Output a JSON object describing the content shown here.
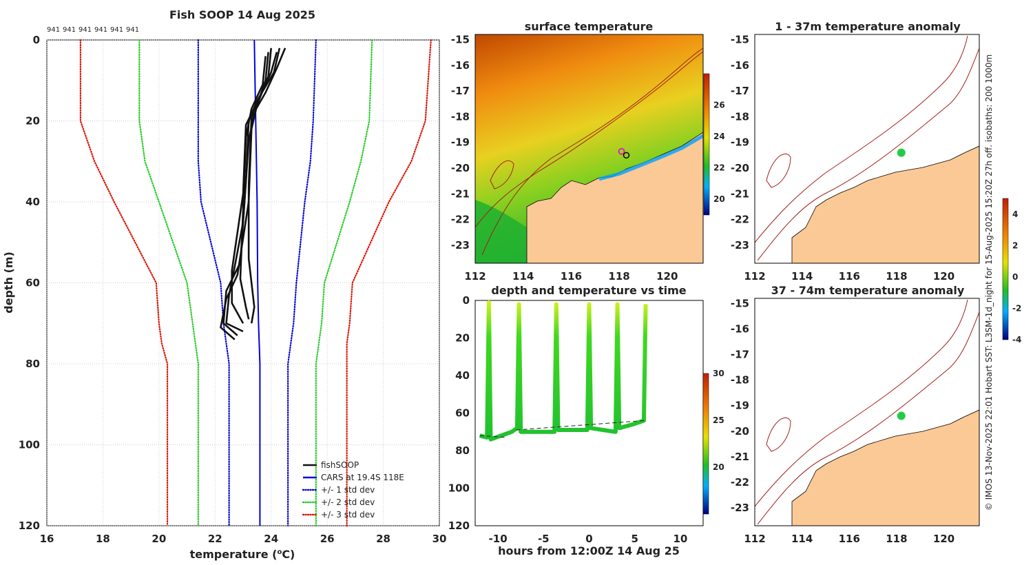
{
  "colors": {
    "obs": "#111111",
    "cars": "#0000dd",
    "std1": "#0000dd",
    "std2": "#22cc22",
    "std3": "#dd1100",
    "land": "#fbc995",
    "isobath": "#a0201a",
    "green": "#22cc44"
  },
  "chart_data": [
    {
      "type": "line",
      "title": "Fish SOOP 14 Aug 2025",
      "xlabel": "temperature (°C)",
      "xlabel_base": "temperature (",
      "xlabel_sup": "o",
      "xlabel_end": "C)",
      "ylabel": "depth (m)",
      "xlim": [
        16,
        30
      ],
      "ylim": [
        0,
        120
      ],
      "xticks": [
        16,
        18,
        20,
        22,
        24,
        26,
        28,
        30
      ],
      "yticks": [
        0,
        20,
        40,
        60,
        80,
        100,
        120
      ],
      "top_labels": [
        "941",
        "941",
        "941",
        "941",
        "941",
        "941"
      ],
      "legend": {
        "position": "bottom-right",
        "entries": [
          "fishSOOP",
          "CARS at 19.4S 118E",
          "+/- 1 std dev",
          "+/- 2 std dev",
          "+/- 3 std dev"
        ]
      },
      "series": [
        {
          "name": "CARS at 19.4S 118E",
          "depth": [
            0,
            20,
            40,
            60,
            70,
            80,
            90,
            100,
            120
          ],
          "temp": [
            23.4,
            23.45,
            23.5,
            23.52,
            23.55,
            23.6,
            23.6,
            23.6,
            23.6
          ]
        },
        {
          "name": "+/- 1 std dev low",
          "depth": [
            0,
            20,
            30,
            40,
            60,
            70,
            75,
            80,
            90,
            100,
            120
          ],
          "temp": [
            21.4,
            21.4,
            21.4,
            21.5,
            22.2,
            22.3,
            22.4,
            22.5,
            22.5,
            22.5,
            22.5
          ]
        },
        {
          "name": "+/- 1 std dev high",
          "depth": [
            0,
            20,
            30,
            40,
            60,
            70,
            75,
            80,
            90,
            100,
            120
          ],
          "temp": [
            25.6,
            25.5,
            25.4,
            25.2,
            24.9,
            24.8,
            24.7,
            24.6,
            24.6,
            24.6,
            24.6
          ]
        },
        {
          "name": "+/- 2 std dev low",
          "depth": [
            0,
            20,
            30,
            40,
            60,
            70,
            75,
            80,
            90,
            100,
            120
          ],
          "temp": [
            19.3,
            19.3,
            19.5,
            20.0,
            21.0,
            21.2,
            21.3,
            21.4,
            21.4,
            21.4,
            21.4
          ]
        },
        {
          "name": "+/- 2 std dev high",
          "depth": [
            0,
            20,
            30,
            40,
            60,
            70,
            75,
            80,
            90,
            100,
            120
          ],
          "temp": [
            27.6,
            27.5,
            27.2,
            26.8,
            25.9,
            25.8,
            25.7,
            25.6,
            25.6,
            25.6,
            25.6
          ]
        },
        {
          "name": "+/- 3 std dev low",
          "depth": [
            0,
            20,
            30,
            40,
            60,
            70,
            75,
            80,
            90,
            100,
            120
          ],
          "temp": [
            17.2,
            17.2,
            17.7,
            18.4,
            19.9,
            20.0,
            20.1,
            20.3,
            20.3,
            20.3,
            20.3
          ]
        },
        {
          "name": "+/- 3 std dev high",
          "depth": [
            0,
            20,
            30,
            40,
            60,
            70,
            75,
            80,
            90,
            100,
            120
          ],
          "temp": [
            29.7,
            29.5,
            29.0,
            28.2,
            26.9,
            26.8,
            26.7,
            26.7,
            26.7,
            26.7,
            26.7
          ]
        }
      ],
      "casts": [
        {
          "depth": [
            2,
            8,
            15,
            20,
            35,
            55,
            62,
            70,
            73
          ],
          "temp": [
            24.3,
            24.1,
            23.5,
            23.2,
            23.1,
            22.9,
            22.4,
            22.3,
            22.8
          ]
        },
        {
          "depth": [
            2,
            9,
            16,
            22,
            40,
            58,
            64,
            71,
            74
          ],
          "temp": [
            24.0,
            23.9,
            23.5,
            23.3,
            23.2,
            22.8,
            22.4,
            22.2,
            22.7
          ]
        },
        {
          "depth": [
            3,
            10,
            18,
            25,
            45,
            56,
            63,
            70,
            72
          ],
          "temp": [
            23.9,
            23.8,
            23.4,
            23.2,
            23.0,
            22.7,
            22.5,
            22.4,
            23.0
          ]
        },
        {
          "depth": [
            3,
            8,
            14,
            21,
            38,
            57,
            65,
            70
          ],
          "temp": [
            24.2,
            24.0,
            23.6,
            23.1,
            23.0,
            22.6,
            22.6,
            23.0
          ]
        },
        {
          "depth": [
            2,
            7,
            13,
            19,
            36,
            54,
            60,
            66,
            70
          ],
          "temp": [
            24.5,
            24.2,
            23.8,
            23.3,
            23.2,
            23.2,
            23.3,
            23.4,
            23.3
          ]
        },
        {
          "depth": [
            4,
            11,
            17,
            24,
            42,
            59,
            66,
            69
          ],
          "temp": [
            23.8,
            23.7,
            23.3,
            23.1,
            23.0,
            22.9,
            23.1,
            23.2
          ]
        }
      ]
    },
    {
      "type": "heatmap",
      "title": "surface temperature",
      "xlim": [
        112,
        121.5
      ],
      "ylim": [
        -23.7,
        -14.8
      ],
      "xticks": [
        112,
        114,
        116,
        118,
        120
      ],
      "yticks": [
        -15,
        -16,
        -17,
        -18,
        -19,
        -20,
        -21,
        -22,
        -23
      ],
      "colorbar": {
        "min": 19,
        "max": 28,
        "ticks": [
          20,
          22,
          24,
          26
        ]
      },
      "markers": [
        {
          "lon": 118.1,
          "lat": -19.35,
          "kind": "magenta ring"
        },
        {
          "lon": 118.3,
          "lat": -19.5,
          "kind": "black ring"
        }
      ]
    },
    {
      "type": "scatter",
      "title": "depth and temperature vs time",
      "xlabel": "hours from 12:00Z 14 Aug 25",
      "xlim": [
        -12.5,
        12.5
      ],
      "ylim": [
        0,
        120
      ],
      "xticks": [
        -10,
        -5,
        0,
        5,
        10
      ],
      "yticks": [
        0,
        20,
        40,
        60,
        80,
        100,
        120
      ],
      "colorbar": {
        "min": 15,
        "max": 30,
        "ticks": [
          20,
          25,
          30
        ]
      },
      "profiles": [
        {
          "hours": [
            -12,
            -11.2,
            -11.0,
            -10.8,
            -8.5,
            -7.9,
            -7.7,
            -7.5,
            -5.0,
            -3.8,
            -3.6,
            -3.4,
            -1.5,
            -0.2,
            0.0,
            0.2,
            1.5,
            2.9,
            3.1,
            3.3,
            4.8,
            6.0,
            6.2
          ],
          "depth": [
            72,
            73,
            1,
            74,
            70,
            68,
            2,
            70,
            70,
            70,
            2,
            69,
            69,
            69,
            2,
            68,
            69,
            70,
            2,
            68,
            66,
            64,
            2
          ]
        }
      ],
      "bottom_dashed": [
        {
          "hours": [
            -12,
            -9
          ],
          "depth": [
            72,
            73
          ]
        },
        {
          "hours": [
            -8,
            6
          ],
          "depth": [
            69,
            64
          ]
        }
      ]
    },
    {
      "type": "scatter",
      "title": "1 - 37m temperature anomaly",
      "xlim": [
        112,
        121.5
      ],
      "ylim": [
        -23.7,
        -14.8
      ],
      "xticks": [
        112,
        114,
        116,
        118,
        120
      ],
      "yticks": [
        -15,
        -16,
        -17,
        -18,
        -19,
        -20,
        -21,
        -22,
        -23
      ],
      "colorbar": {
        "min": -4,
        "max": 5,
        "ticks": [
          4,
          2,
          0,
          -2,
          -4
        ]
      },
      "points": [
        {
          "lon": 118.2,
          "lat": -19.4
        }
      ]
    },
    {
      "type": "scatter",
      "title": "37 - 74m temperature anomaly",
      "xlim": [
        112,
        121.5
      ],
      "ylim": [
        -23.7,
        -14.8
      ],
      "xticks": [
        112,
        114,
        116,
        118,
        120
      ],
      "yticks": [
        -15,
        -16,
        -17,
        -18,
        -19,
        -20,
        -21,
        -22,
        -23
      ],
      "points": [
        {
          "lon": 118.2,
          "lat": -19.4
        }
      ]
    }
  ],
  "footer_text": "© IMOS 13-Nov-2025 22:01 Hobart SST: L3SM-1d_night for 15-Aug-2025 15:20Z 27h off. isobaths: 200  1000m"
}
